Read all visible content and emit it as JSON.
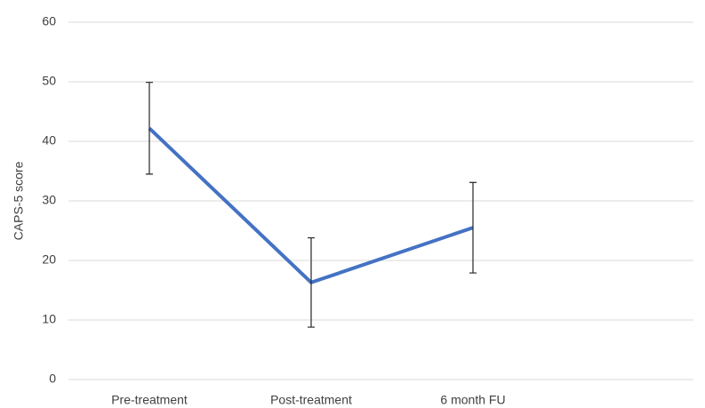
{
  "chart_data": {
    "type": "line",
    "y_label": "CAPS-5 score",
    "categories": [
      "Pre-treatment",
      "Post-treatment",
      "6 month FU",
      null
    ],
    "series": [
      {
        "name": "CAPS-5 score",
        "color": "#4472c4",
        "values": [
          42.2,
          16.3,
          25.5,
          null
        ],
        "errors": [
          7.7,
          7.5,
          7.6,
          null
        ]
      }
    ],
    "ylim": [
      0,
      60
    ],
    "yticks": [
      0,
      10,
      20,
      30,
      40,
      50,
      60
    ],
    "grid": true
  }
}
